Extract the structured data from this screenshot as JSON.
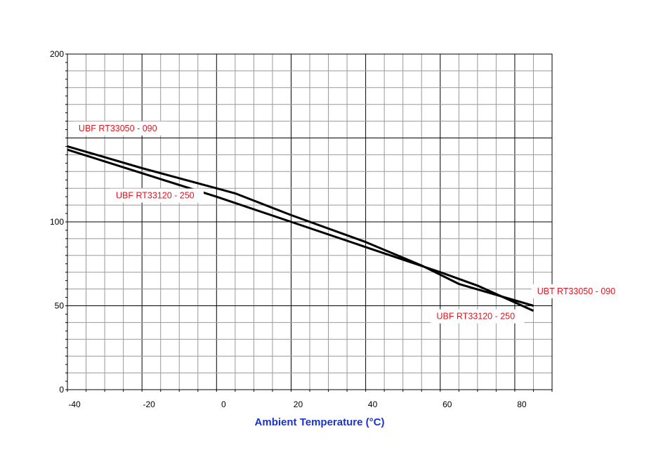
{
  "chart_data": {
    "type": "line",
    "title": "",
    "xlabel": "Ambient Temperature (°C)",
    "ylabel": "",
    "xlim": [
      -40,
      90
    ],
    "ylim": [
      0,
      200
    ],
    "x_ticks": [
      -40,
      -20,
      0,
      20,
      40,
      60,
      80
    ],
    "y_ticks": [
      0,
      50,
      100,
      200
    ],
    "grid": true,
    "series": [
      {
        "name": "UBF RT33050 - 090",
        "x": [
          -40,
          -20,
          0,
          5,
          20,
          40,
          55,
          65,
          85
        ],
        "y": [
          145,
          132,
          120,
          117,
          104,
          88,
          74,
          63,
          50
        ]
      },
      {
        "name": "UBF RT33120 - 250",
        "x": [
          -40,
          -20,
          0,
          20,
          40,
          60,
          70,
          85
        ],
        "y": [
          143,
          129,
          115,
          100,
          85,
          70,
          62,
          47
        ]
      }
    ],
    "annotations": [
      {
        "text": "UBF RT33050 - 090",
        "x": -37,
        "y": 154
      },
      {
        "text": "UBF RT33120 - 250",
        "x": -27,
        "y": 114
      },
      {
        "text": "UBT RT33050 - 090",
        "x": 86,
        "y": 57
      },
      {
        "text": "UBF RT33120 - 250",
        "x": 59,
        "y": 42
      }
    ],
    "colors": {
      "line": "#000000",
      "grid_minor": "#999999",
      "grid_major": "#000000",
      "annotation_text": "#e0141e",
      "xlabel_text": "#1a33cc"
    }
  }
}
